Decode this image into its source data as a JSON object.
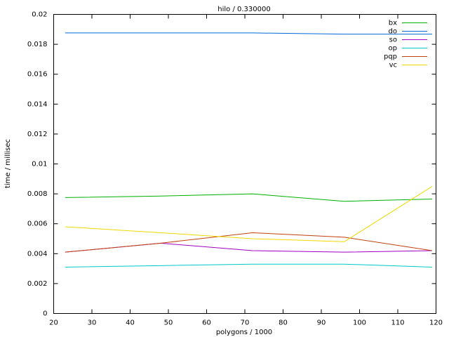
{
  "chart_data": {
    "type": "line",
    "title": "hilo / 0.330000",
    "x_label": "polygons / 1000",
    "y_label": "time / millisec",
    "x": [
      23,
      48,
      72,
      96,
      119
    ],
    "series": [
      {
        "name": "bx",
        "color": "#00b000",
        "values": [
          0.00775,
          0.00785,
          0.008,
          0.0075,
          0.00765
        ]
      },
      {
        "name": "do",
        "color": "#0068d8",
        "values": [
          0.01876,
          0.01876,
          0.01876,
          0.01868,
          0.01868
        ]
      },
      {
        "name": "so",
        "color": "#a000c0",
        "values": [
          0.0041,
          0.0047,
          0.0042,
          0.0041,
          0.0042
        ]
      },
      {
        "name": "op",
        "color": "#00c8c8",
        "values": [
          0.0031,
          0.0032,
          0.0033,
          0.0033,
          0.0031
        ]
      },
      {
        "name": "pqp",
        "color": "#c04010",
        "values": [
          0.0041,
          0.0047,
          0.0054,
          0.0051,
          0.0042
        ]
      },
      {
        "name": "vc",
        "color": "#f0d800",
        "values": [
          0.0058,
          0.0054,
          0.005,
          0.0048,
          0.0085
        ]
      }
    ],
    "xlim": [
      20,
      120
    ],
    "xticks": [
      20,
      30,
      40,
      50,
      60,
      70,
      80,
      90,
      100,
      110,
      120
    ],
    "ylim": [
      0,
      0.02
    ],
    "yticks": [
      0,
      0.002,
      0.004,
      0.006,
      0.008,
      0.01,
      0.012,
      0.014,
      0.016,
      0.018,
      0.02
    ],
    "legend": "top-right"
  }
}
